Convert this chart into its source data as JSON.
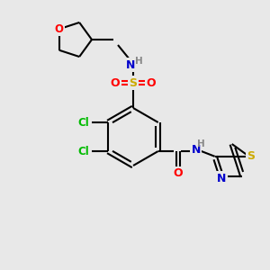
{
  "bg_color": "#e8e8e8",
  "bond_color": "#000000",
  "atom_colors": {
    "O": "#ff0000",
    "N": "#0000cc",
    "S_sulfonyl": "#ccaa00",
    "S_thiazole": "#ccaa00",
    "Cl": "#00bb00",
    "H": "#888888",
    "C": "#000000"
  },
  "figsize": [
    3.0,
    3.0
  ],
  "dpi": 100,
  "bg_color_light": "#e8e8e8"
}
